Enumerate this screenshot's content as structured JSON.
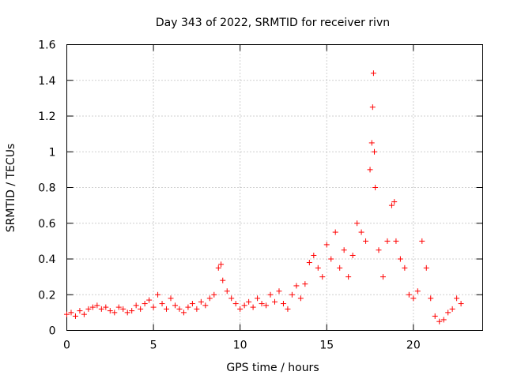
{
  "chart_data": {
    "type": "scatter",
    "title": "Day 343 of 2022, SRMTID for receiver rivn",
    "xlabel": "GPS time / hours",
    "ylabel": "SRMTID / TECUs",
    "xlim": [
      0,
      24
    ],
    "ylim": [
      0,
      1.6
    ],
    "xticks": [
      0,
      5,
      10,
      15,
      20
    ],
    "xtick_labels": [
      "0",
      "5",
      "10",
      "15",
      "20"
    ],
    "yticks": [
      0,
      0.2,
      0.4,
      0.6,
      0.8,
      1,
      1.2,
      1.4,
      1.6
    ],
    "ytick_labels": [
      "0",
      "0.2",
      "0.4",
      "0.6",
      "0.8",
      "1",
      "1.2",
      "1.4",
      "1.6"
    ],
    "grid": true,
    "marker": "+",
    "color": "#ff0000",
    "series": [
      {
        "name": "SRMTID",
        "x": [
          0.0,
          0.25,
          0.5,
          0.75,
          1.0,
          1.25,
          1.5,
          1.75,
          2.0,
          2.25,
          2.5,
          2.75,
          3.0,
          3.25,
          3.5,
          3.75,
          4.0,
          4.25,
          4.5,
          4.75,
          5.0,
          5.25,
          5.5,
          5.75,
          6.0,
          6.25,
          6.5,
          6.75,
          7.0,
          7.25,
          7.5,
          7.75,
          8.0,
          8.25,
          8.5,
          8.75,
          8.9,
          9.0,
          9.25,
          9.5,
          9.75,
          10.0,
          10.25,
          10.5,
          10.75,
          11.0,
          11.25,
          11.5,
          11.75,
          12.0,
          12.25,
          12.5,
          12.75,
          13.0,
          13.25,
          13.5,
          13.75,
          14.0,
          14.25,
          14.5,
          14.75,
          15.0,
          15.25,
          15.5,
          15.75,
          16.0,
          16.25,
          16.5,
          16.75,
          17.0,
          17.25,
          17.5,
          17.6,
          17.65,
          17.7,
          17.75,
          17.8,
          18.0,
          18.25,
          18.5,
          18.75,
          18.9,
          19.0,
          19.25,
          19.5,
          19.75,
          20.0,
          20.25,
          20.5,
          20.75,
          21.0,
          21.25,
          21.5,
          21.75,
          22.0,
          22.25,
          22.5,
          22.75
        ],
        "y": [
          0.09,
          0.1,
          0.08,
          0.11,
          0.09,
          0.12,
          0.13,
          0.14,
          0.12,
          0.13,
          0.11,
          0.1,
          0.13,
          0.12,
          0.1,
          0.11,
          0.14,
          0.12,
          0.15,
          0.17,
          0.13,
          0.2,
          0.15,
          0.12,
          0.18,
          0.14,
          0.12,
          0.1,
          0.13,
          0.15,
          0.12,
          0.16,
          0.14,
          0.18,
          0.2,
          0.35,
          0.37,
          0.28,
          0.22,
          0.18,
          0.15,
          0.12,
          0.14,
          0.16,
          0.13,
          0.18,
          0.15,
          0.14,
          0.2,
          0.16,
          0.22,
          0.15,
          0.12,
          0.2,
          0.25,
          0.18,
          0.26,
          0.38,
          0.42,
          0.35,
          0.3,
          0.48,
          0.4,
          0.55,
          0.35,
          0.45,
          0.3,
          0.42,
          0.6,
          0.55,
          0.5,
          0.9,
          1.05,
          1.25,
          1.44,
          1.0,
          0.8,
          0.45,
          0.3,
          0.5,
          0.7,
          0.72,
          0.5,
          0.4,
          0.35,
          0.2,
          0.18,
          0.22,
          0.5,
          0.35,
          0.18,
          0.08,
          0.05,
          0.06,
          0.1,
          0.12,
          0.18,
          0.15
        ]
      }
    ]
  }
}
